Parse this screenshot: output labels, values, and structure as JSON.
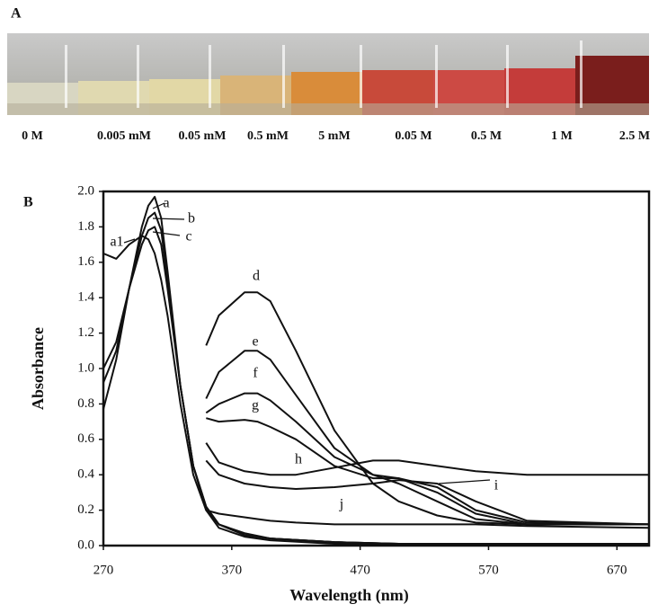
{
  "panel_a": {
    "label": "A",
    "samples": [
      "0 M",
      "0.005 mM",
      "0.05 mM",
      "0.5 mM",
      "5 mM",
      "0.05 M",
      "0.5 M",
      "1 M",
      "2.5 M"
    ]
  },
  "chart_data": {
    "type": "line",
    "panel_label": "B",
    "x_label": "Wavelength (nm)",
    "y_label": "Absorbance",
    "xlim": [
      270,
      695
    ],
    "ylim": [
      0,
      2.0
    ],
    "xticks": [
      270,
      370,
      470,
      570,
      670
    ],
    "yticks": [
      {
        "value": 0,
        "label": "0.0"
      },
      0.2,
      0.4,
      0.6,
      0.8,
      {
        "value": 1,
        "label": "1.0"
      },
      1.2,
      1.4,
      1.6,
      1.8,
      {
        "value": 2,
        "label": "2.0"
      }
    ],
    "series": [
      {
        "name": "a",
        "color": "#111111",
        "x": [
          270,
          280,
          290,
          300,
          305,
          310,
          315,
          320,
          330,
          340,
          350,
          360,
          380,
          400,
          450,
          500,
          600,
          695
        ],
        "values": [
          0.77,
          1.05,
          1.45,
          1.8,
          1.92,
          1.97,
          1.85,
          1.55,
          0.9,
          0.45,
          0.2,
          0.1,
          0.05,
          0.03,
          0.01,
          0.01,
          0,
          0
        ]
      },
      {
        "name": "a1",
        "color": "#111111",
        "x": [
          270,
          280,
          290,
          300,
          305,
          310,
          315,
          320,
          330,
          340,
          350,
          360,
          380,
          400,
          450,
          500,
          600,
          695
        ],
        "values": [
          1.65,
          1.62,
          1.7,
          1.75,
          1.73,
          1.65,
          1.5,
          1.3,
          0.8,
          0.4,
          0.2,
          0.12,
          0.07,
          0.04,
          0.02,
          0.01,
          0.01,
          0.01
        ]
      },
      {
        "name": "b",
        "color": "#111111",
        "x": [
          270,
          280,
          290,
          300,
          305,
          310,
          315,
          320,
          330,
          340,
          350,
          360,
          380,
          400,
          450,
          500,
          600,
          695
        ],
        "values": [
          0.92,
          1.1,
          1.45,
          1.75,
          1.85,
          1.88,
          1.78,
          1.5,
          0.9,
          0.45,
          0.22,
          0.12,
          0.06,
          0.04,
          0.02,
          0.01,
          0.01,
          0.01
        ]
      },
      {
        "name": "c",
        "color": "#111111",
        "x": [
          270,
          280,
          290,
          300,
          305,
          310,
          315,
          320,
          330,
          340,
          350,
          360,
          380,
          400,
          450,
          500,
          600,
          695
        ],
        "values": [
          1.0,
          1.15,
          1.45,
          1.7,
          1.78,
          1.8,
          1.7,
          1.45,
          0.9,
          0.45,
          0.22,
          0.12,
          0.06,
          0.04,
          0.02,
          0.01,
          0.01,
          0.01
        ]
      },
      {
        "name": "d",
        "color": "#111111",
        "x": [
          350,
          360,
          380,
          390,
          400,
          420,
          450,
          480,
          500,
          530,
          560,
          600,
          695
        ],
        "values": [
          1.13,
          1.3,
          1.43,
          1.43,
          1.38,
          1.1,
          0.65,
          0.35,
          0.25,
          0.17,
          0.13,
          0.12,
          0.12
        ]
      },
      {
        "name": "e",
        "color": "#111111",
        "x": [
          350,
          360,
          380,
          390,
          400,
          420,
          450,
          480,
          500,
          530,
          560,
          600,
          695
        ],
        "values": [
          0.83,
          0.98,
          1.1,
          1.1,
          1.05,
          0.85,
          0.55,
          0.4,
          0.35,
          0.25,
          0.15,
          0.12,
          0.12
        ]
      },
      {
        "name": "f",
        "color": "#111111",
        "x": [
          350,
          360,
          380,
          390,
          400,
          420,
          450,
          480,
          500,
          530,
          560,
          600,
          695
        ],
        "values": [
          0.75,
          0.8,
          0.86,
          0.86,
          0.82,
          0.7,
          0.5,
          0.4,
          0.38,
          0.3,
          0.18,
          0.12,
          0.12
        ]
      },
      {
        "name": "g",
        "color": "#111111",
        "x": [
          350,
          360,
          380,
          390,
          400,
          420,
          450,
          480,
          500,
          530,
          560,
          600,
          695
        ],
        "values": [
          0.72,
          0.7,
          0.71,
          0.7,
          0.67,
          0.6,
          0.45,
          0.38,
          0.38,
          0.33,
          0.2,
          0.13,
          0.12
        ]
      },
      {
        "name": "h",
        "color": "#111111",
        "x": [
          350,
          360,
          380,
          390,
          400,
          420,
          450,
          480,
          500,
          530,
          560,
          600,
          695
        ],
        "values": [
          0.58,
          0.47,
          0.42,
          0.41,
          0.4,
          0.4,
          0.44,
          0.48,
          0.48,
          0.45,
          0.42,
          0.4,
          0.4
        ]
      },
      {
        "name": "i",
        "color": "#111111",
        "x": [
          350,
          360,
          380,
          390,
          400,
          420,
          450,
          480,
          500,
          530,
          560,
          600,
          695
        ],
        "values": [
          0.48,
          0.4,
          0.35,
          0.34,
          0.33,
          0.32,
          0.33,
          0.35,
          0.37,
          0.35,
          0.25,
          0.14,
          0.12
        ]
      },
      {
        "name": "j",
        "color": "#111111",
        "x": [
          350,
          360,
          380,
          390,
          400,
          420,
          450,
          480,
          500,
          530,
          560,
          600,
          695
        ],
        "values": [
          0.2,
          0.18,
          0.16,
          0.15,
          0.14,
          0.13,
          0.12,
          0.12,
          0.12,
          0.12,
          0.12,
          0.11,
          0.1
        ]
      }
    ]
  }
}
